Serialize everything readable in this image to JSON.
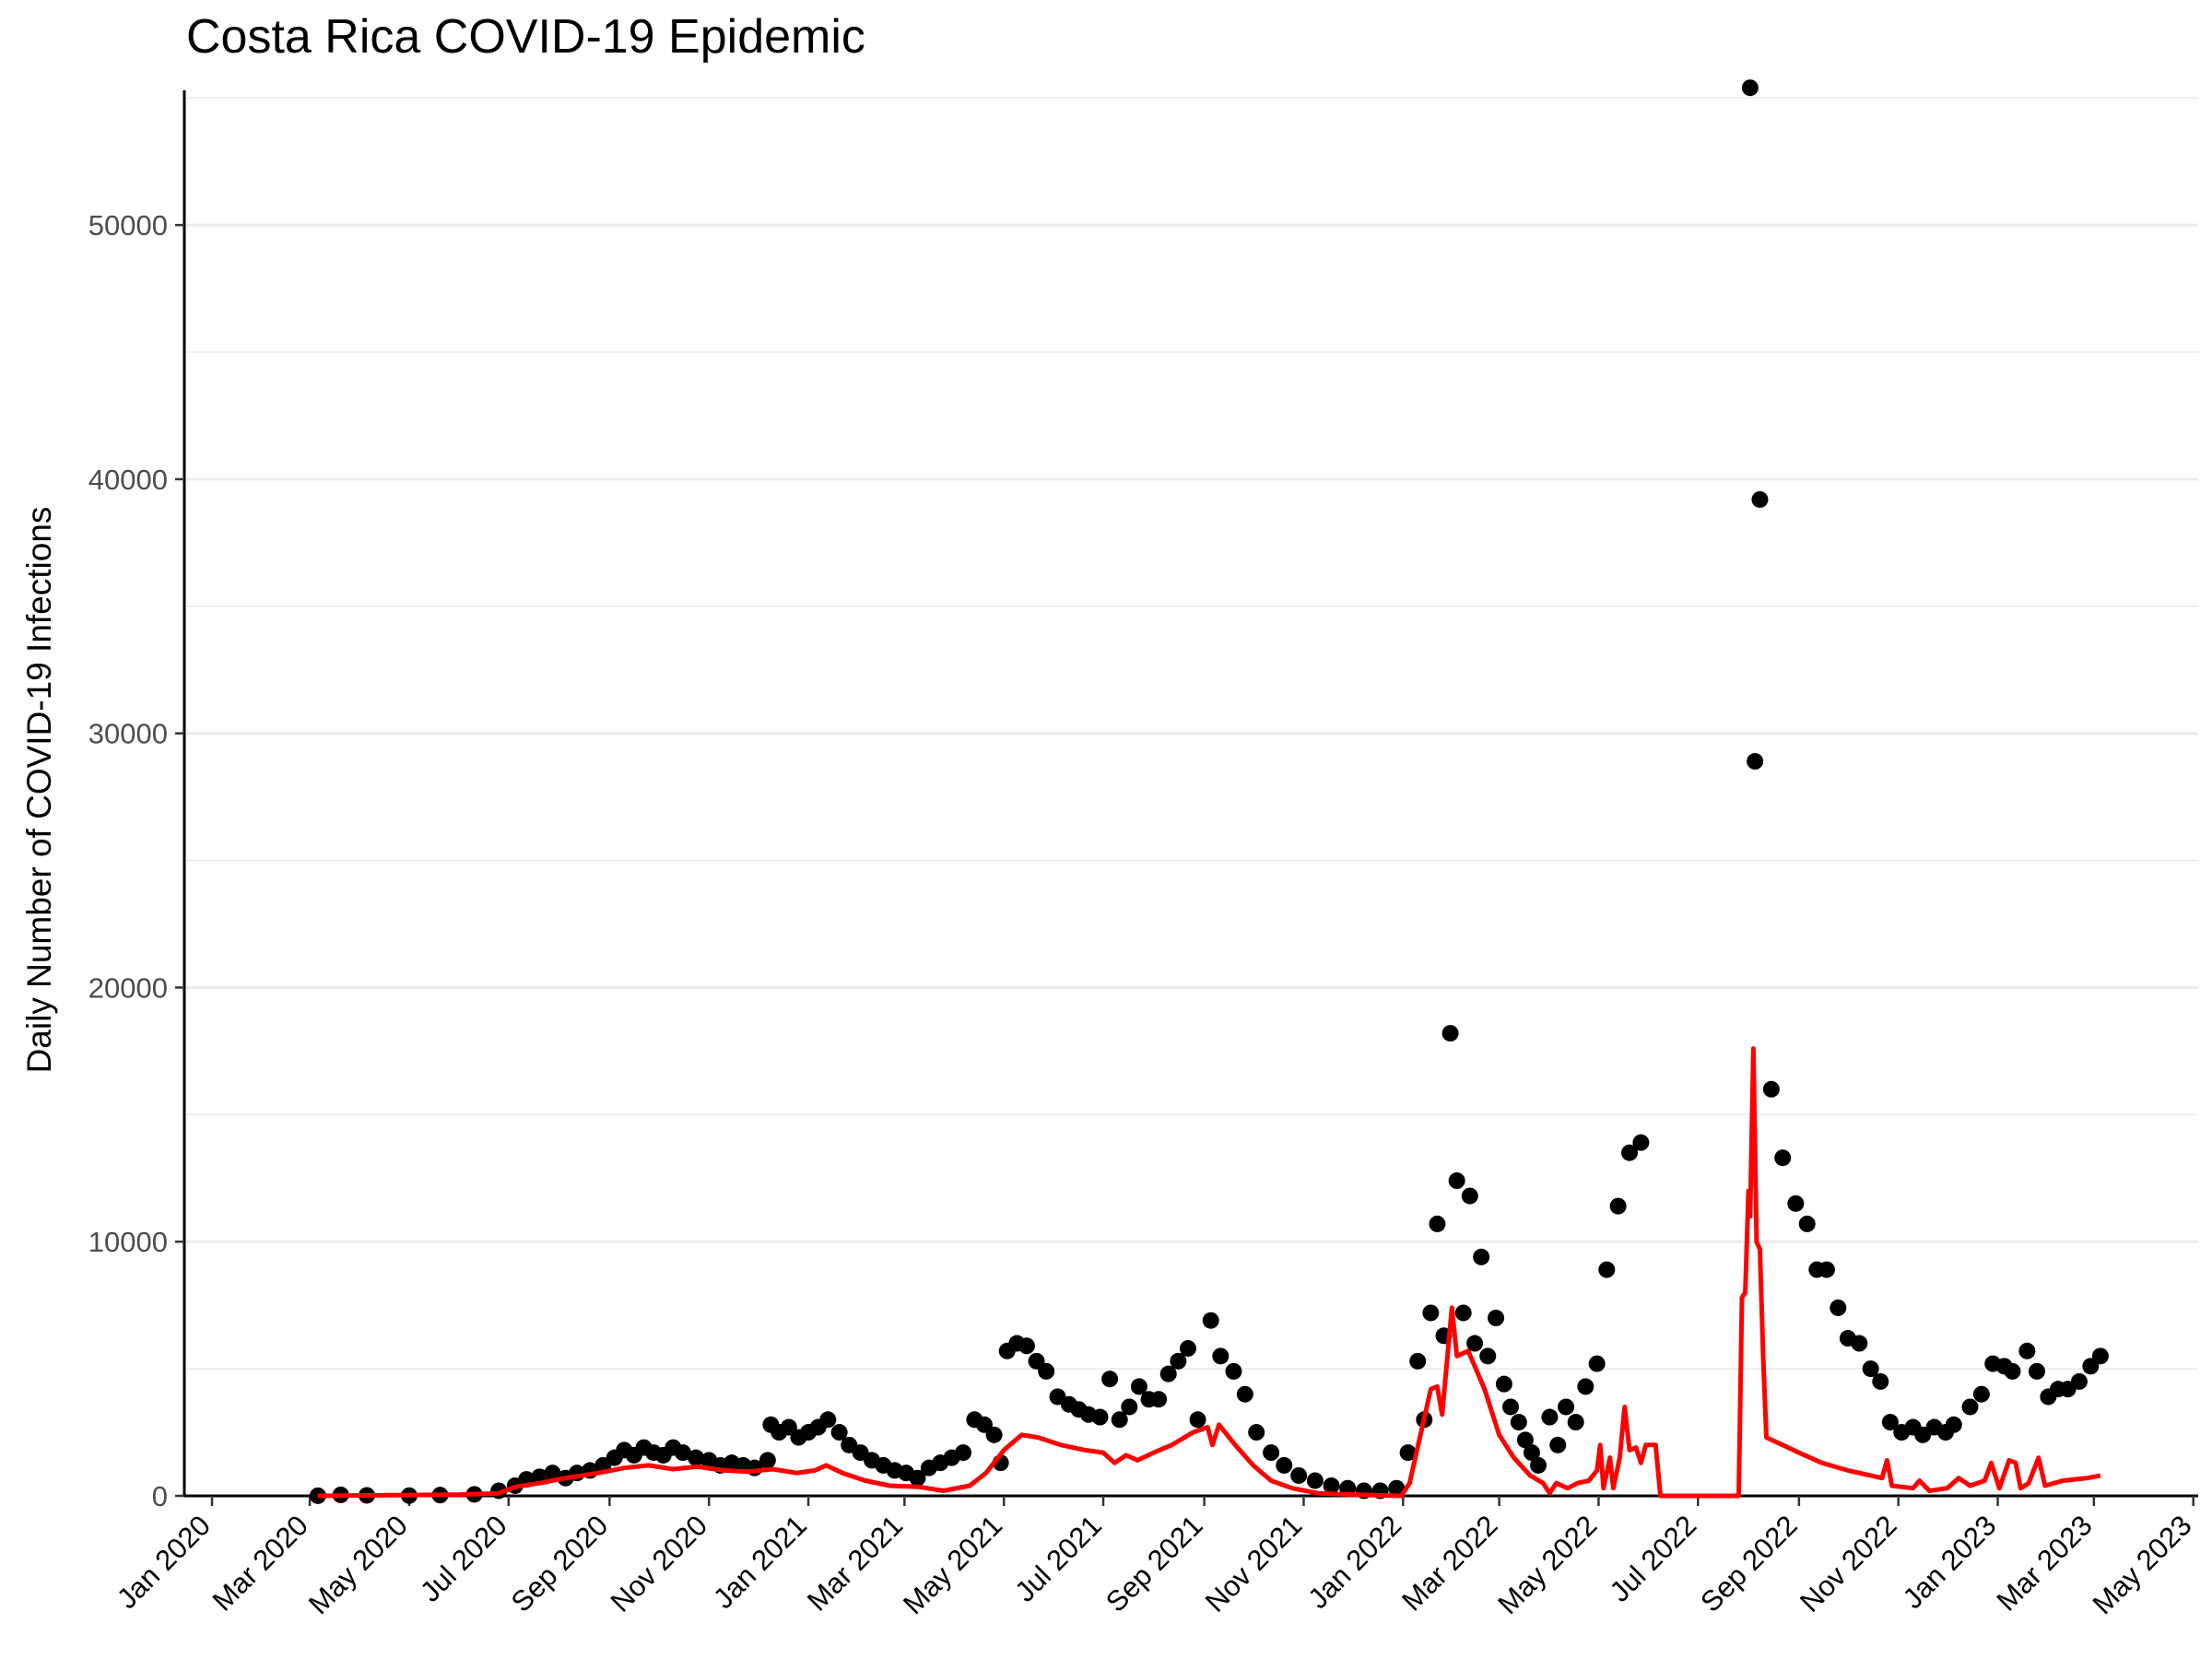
{
  "chart_data": {
    "type": "scatter",
    "title": "Costa Rica COVID-19 Epidemic",
    "xlabel": "",
    "ylabel": "Daily Number of COVID-19 Infections",
    "x_axis_type": "date",
    "xlim": [
      "2019-12-15",
      "2023-05-04"
    ],
    "ylim": [
      0,
      55300
    ],
    "y_ticks": [
      0,
      10000,
      20000,
      30000,
      40000,
      50000
    ],
    "y_tick_labels": [
      "0",
      "10000",
      "20000",
      "30000",
      "40000",
      "50000"
    ],
    "x_ticks": [
      "2020-01-01",
      "2020-03-01",
      "2020-05-01",
      "2020-07-01",
      "2020-09-01",
      "2020-11-01",
      "2021-01-01",
      "2021-03-01",
      "2021-05-01",
      "2021-07-01",
      "2021-09-01",
      "2021-11-01",
      "2022-01-01",
      "2022-03-01",
      "2022-05-01",
      "2022-07-01",
      "2022-09-01",
      "2022-11-01",
      "2023-01-01",
      "2023-03-01",
      "2023-05-01"
    ],
    "x_tick_labels": [
      "Jan 2020",
      "Mar 2020",
      "May 2020",
      "Jul 2020",
      "Sep 2020",
      "Nov 2020",
      "Jan 2021",
      "Mar 2021",
      "May 2021",
      "Jul 2021",
      "Sep 2021",
      "Nov 2021",
      "Jan 2022",
      "Mar 2022",
      "May 2022",
      "Jul 2022",
      "Sep 2022",
      "Nov 2022",
      "Jan 2023",
      "Mar 2023",
      "May 2023"
    ],
    "grid": "horizontal major and minor",
    "legend": "none",
    "series": [
      {
        "mark": "point",
        "color": "#000000",
        "points": [
          [
            "2020-03-06",
            5
          ],
          [
            "2020-03-20",
            40
          ],
          [
            "2020-04-05",
            20
          ],
          [
            "2020-05-01",
            10
          ],
          [
            "2020-05-20",
            30
          ],
          [
            "2020-06-10",
            60
          ],
          [
            "2020-06-25",
            200
          ],
          [
            "2020-07-05",
            400
          ],
          [
            "2020-07-12",
            650
          ],
          [
            "2020-07-20",
            750
          ],
          [
            "2020-07-28",
            900
          ],
          [
            "2020-08-05",
            700
          ],
          [
            "2020-08-12",
            900
          ],
          [
            "2020-08-20",
            1000
          ],
          [
            "2020-08-28",
            1200
          ],
          [
            "2020-09-04",
            1500
          ],
          [
            "2020-09-10",
            1800
          ],
          [
            "2020-09-16",
            1600
          ],
          [
            "2020-09-22",
            1900
          ],
          [
            "2020-09-28",
            1700
          ],
          [
            "2020-10-04",
            1600
          ],
          [
            "2020-10-10",
            1900
          ],
          [
            "2020-10-16",
            1700
          ],
          [
            "2020-10-24",
            1500
          ],
          [
            "2020-11-01",
            1400
          ],
          [
            "2020-11-08",
            1200
          ],
          [
            "2020-11-15",
            1300
          ],
          [
            "2020-11-22",
            1200
          ],
          [
            "2020-11-29",
            1100
          ],
          [
            "2020-12-07",
            1400
          ],
          [
            "2020-12-09",
            2800
          ],
          [
            "2020-12-14",
            2500
          ],
          [
            "2020-12-20",
            2700
          ],
          [
            "2020-12-26",
            2300
          ],
          [
            "2021-01-01",
            2500
          ],
          [
            "2021-01-07",
            2700
          ],
          [
            "2021-01-13",
            3000
          ],
          [
            "2021-01-20",
            2500
          ],
          [
            "2021-01-26",
            2000
          ],
          [
            "2021-02-02",
            1700
          ],
          [
            "2021-02-09",
            1400
          ],
          [
            "2021-02-16",
            1200
          ],
          [
            "2021-02-23",
            1000
          ],
          [
            "2021-03-02",
            900
          ],
          [
            "2021-03-09",
            700
          ],
          [
            "2021-03-16",
            1100
          ],
          [
            "2021-03-23",
            1300
          ],
          [
            "2021-03-30",
            1500
          ],
          [
            "2021-04-06",
            1700
          ],
          [
            "2021-04-13",
            3000
          ],
          [
            "2021-04-19",
            2800
          ],
          [
            "2021-04-25",
            2400
          ],
          [
            "2021-04-29",
            1300
          ],
          [
            "2021-05-03",
            5700
          ],
          [
            "2021-05-09",
            6000
          ],
          [
            "2021-05-15",
            5900
          ],
          [
            "2021-05-21",
            5300
          ],
          [
            "2021-05-27",
            4900
          ],
          [
            "2021-06-03",
            3900
          ],
          [
            "2021-06-10",
            3600
          ],
          [
            "2021-06-16",
            3400
          ],
          [
            "2021-06-22",
            3200
          ],
          [
            "2021-06-29",
            3100
          ],
          [
            "2021-07-05",
            4600
          ],
          [
            "2021-07-11",
            3000
          ],
          [
            "2021-07-17",
            3500
          ],
          [
            "2021-07-23",
            4300
          ],
          [
            "2021-07-29",
            3800
          ],
          [
            "2021-08-04",
            3800
          ],
          [
            "2021-08-10",
            4800
          ],
          [
            "2021-08-16",
            5300
          ],
          [
            "2021-08-22",
            5800
          ],
          [
            "2021-08-28",
            3000
          ],
          [
            "2021-09-05",
            6900
          ],
          [
            "2021-09-11",
            5500
          ],
          [
            "2021-09-19",
            4900
          ],
          [
            "2021-09-26",
            4000
          ],
          [
            "2021-10-03",
            2500
          ],
          [
            "2021-10-12",
            1700
          ],
          [
            "2021-10-20",
            1200
          ],
          [
            "2021-10-29",
            800
          ],
          [
            "2021-11-08",
            600
          ],
          [
            "2021-11-18",
            400
          ],
          [
            "2021-11-28",
            300
          ],
          [
            "2021-12-08",
            200
          ],
          [
            "2021-12-18",
            200
          ],
          [
            "2021-12-28",
            300
          ],
          [
            "2022-01-04",
            1700
          ],
          [
            "2022-01-10",
            5300
          ],
          [
            "2022-01-14",
            3000
          ],
          [
            "2022-01-18",
            7200
          ],
          [
            "2022-01-22",
            10700
          ],
          [
            "2022-01-26",
            6300
          ],
          [
            "2022-01-30",
            18200
          ],
          [
            "2022-02-03",
            12400
          ],
          [
            "2022-02-07",
            7200
          ],
          [
            "2022-02-11",
            11800
          ],
          [
            "2022-02-14",
            6000
          ],
          [
            "2022-02-18",
            9400
          ],
          [
            "2022-02-22",
            5500
          ],
          [
            "2022-02-27",
            7000
          ],
          [
            "2022-03-04",
            4400
          ],
          [
            "2022-03-08",
            3500
          ],
          [
            "2022-03-13",
            2900
          ],
          [
            "2022-03-17",
            2200
          ],
          [
            "2022-03-21",
            1700
          ],
          [
            "2022-03-25",
            1200
          ],
          [
            "2022-04-01",
            3100
          ],
          [
            "2022-04-06",
            2000
          ],
          [
            "2022-04-11",
            3500
          ],
          [
            "2022-04-17",
            2900
          ],
          [
            "2022-04-23",
            4300
          ],
          [
            "2022-04-30",
            5200
          ],
          [
            "2022-05-06",
            8900
          ],
          [
            "2022-05-13",
            11400
          ],
          [
            "2022-05-20",
            13500
          ],
          [
            "2022-05-27",
            13900
          ],
          [
            "2022-08-02",
            55400
          ],
          [
            "2022-08-05",
            28900
          ],
          [
            "2022-08-08",
            39200
          ],
          [
            "2022-08-15",
            16000
          ],
          [
            "2022-08-22",
            13300
          ],
          [
            "2022-08-30",
            11500
          ],
          [
            "2022-09-06",
            10700
          ],
          [
            "2022-09-12",
            8900
          ],
          [
            "2022-09-18",
            8900
          ],
          [
            "2022-09-25",
            7400
          ],
          [
            "2022-10-01",
            6200
          ],
          [
            "2022-10-08",
            6000
          ],
          [
            "2022-10-15",
            5000
          ],
          [
            "2022-10-21",
            4500
          ],
          [
            "2022-10-27",
            2900
          ],
          [
            "2022-11-03",
            2500
          ],
          [
            "2022-11-10",
            2700
          ],
          [
            "2022-11-16",
            2400
          ],
          [
            "2022-11-23",
            2700
          ],
          [
            "2022-11-30",
            2500
          ],
          [
            "2022-12-05",
            2800
          ],
          [
            "2022-12-15",
            3500
          ],
          [
            "2022-12-22",
            4000
          ],
          [
            "2022-12-29",
            5200
          ],
          [
            "2023-01-05",
            5100
          ],
          [
            "2023-01-10",
            4900
          ],
          [
            "2023-01-19",
            5700
          ],
          [
            "2023-01-25",
            4900
          ],
          [
            "2023-02-01",
            3900
          ],
          [
            "2023-02-07",
            4200
          ],
          [
            "2023-02-13",
            4200
          ],
          [
            "2023-02-20",
            4500
          ],
          [
            "2023-02-27",
            5100
          ],
          [
            "2023-03-05",
            5500
          ]
        ]
      },
      {
        "mark": "line",
        "color": "#ff0000",
        "points": [
          [
            "2020-03-06",
            0
          ],
          [
            "2020-06-01",
            50
          ],
          [
            "2020-06-25",
            100
          ],
          [
            "2020-07-05",
            350
          ],
          [
            "2020-07-20",
            500
          ],
          [
            "2020-08-05",
            700
          ],
          [
            "2020-08-25",
            900
          ],
          [
            "2020-09-10",
            1100
          ],
          [
            "2020-09-25",
            1200
          ],
          [
            "2020-10-10",
            1050
          ],
          [
            "2020-10-25",
            1150
          ],
          [
            "2020-11-10",
            1000
          ],
          [
            "2020-11-25",
            950
          ],
          [
            "2020-12-10",
            1050
          ],
          [
            "2020-12-25",
            900
          ],
          [
            "2021-01-05",
            1000
          ],
          [
            "2021-01-12",
            1200
          ],
          [
            "2021-01-22",
            900
          ],
          [
            "2021-02-05",
            600
          ],
          [
            "2021-02-20",
            400
          ],
          [
            "2021-03-10",
            350
          ],
          [
            "2021-03-25",
            200
          ],
          [
            "2021-04-10",
            400
          ],
          [
            "2021-04-20",
            900
          ],
          [
            "2021-05-01",
            1800
          ],
          [
            "2021-05-12",
            2400
          ],
          [
            "2021-05-22",
            2300
          ],
          [
            "2021-06-05",
            2000
          ],
          [
            "2021-06-20",
            1800
          ],
          [
            "2021-07-01",
            1700
          ],
          [
            "2021-07-08",
            1300
          ],
          [
            "2021-07-15",
            1600
          ],
          [
            "2021-07-22",
            1400
          ],
          [
            "2021-08-01",
            1700
          ],
          [
            "2021-08-12",
            2000
          ],
          [
            "2021-08-25",
            2500
          ],
          [
            "2021-09-03",
            2700
          ],
          [
            "2021-09-06",
            2000
          ],
          [
            "2021-09-10",
            2800
          ],
          [
            "2021-09-20",
            2000
          ],
          [
            "2021-10-01",
            1200
          ],
          [
            "2021-10-12",
            600
          ],
          [
            "2021-10-25",
            300
          ],
          [
            "2021-11-10",
            100
          ],
          [
            "2021-12-01",
            50
          ],
          [
            "2021-12-31",
            0
          ],
          [
            "2022-01-05",
            500
          ],
          [
            "2022-01-12",
            2500
          ],
          [
            "2022-01-18",
            4200
          ],
          [
            "2022-01-22",
            4300
          ],
          [
            "2022-01-25",
            3200
          ],
          [
            "2022-01-31",
            7400
          ],
          [
            "2022-02-03",
            5500
          ],
          [
            "2022-02-10",
            5700
          ],
          [
            "2022-02-20",
            4200
          ],
          [
            "2022-03-01",
            2400
          ],
          [
            "2022-03-10",
            1500
          ],
          [
            "2022-03-20",
            800
          ],
          [
            "2022-03-28",
            500
          ],
          [
            "2022-04-01",
            100
          ],
          [
            "2022-04-05",
            500
          ],
          [
            "2022-04-12",
            300
          ],
          [
            "2022-04-18",
            500
          ],
          [
            "2022-04-25",
            600
          ],
          [
            "2022-04-30",
            1000
          ],
          [
            "2022-05-02",
            2000
          ],
          [
            "2022-05-04",
            300
          ],
          [
            "2022-05-08",
            1500
          ],
          [
            "2022-05-10",
            300
          ],
          [
            "2022-05-14",
            1500
          ],
          [
            "2022-05-17",
            3500
          ],
          [
            "2022-05-20",
            1800
          ],
          [
            "2022-05-24",
            1900
          ],
          [
            "2022-05-27",
            1300
          ],
          [
            "2022-05-30",
            2000
          ],
          [
            "2022-06-05",
            2000
          ],
          [
            "2022-06-08",
            0
          ],
          [
            "2022-07-26",
            0
          ],
          [
            "2022-07-28",
            7800
          ],
          [
            "2022-07-30",
            8000
          ],
          [
            "2022-08-01",
            12000
          ],
          [
            "2022-08-02",
            11000
          ],
          [
            "2022-08-04",
            17600
          ],
          [
            "2022-08-06",
            10000
          ],
          [
            "2022-08-08",
            9700
          ],
          [
            "2022-08-10",
            5500
          ],
          [
            "2022-08-12",
            2300
          ],
          [
            "2022-08-22",
            2000
          ],
          [
            "2022-09-01",
            1700
          ],
          [
            "2022-09-15",
            1300
          ],
          [
            "2022-10-01",
            1000
          ],
          [
            "2022-10-15",
            800
          ],
          [
            "2022-10-22",
            700
          ],
          [
            "2022-10-25",
            1400
          ],
          [
            "2022-10-28",
            400
          ],
          [
            "2022-11-10",
            300
          ],
          [
            "2022-11-14",
            600
          ],
          [
            "2022-11-20",
            200
          ],
          [
            "2022-12-01",
            300
          ],
          [
            "2022-12-08",
            700
          ],
          [
            "2022-12-15",
            400
          ],
          [
            "2022-12-24",
            600
          ],
          [
            "2022-12-28",
            1300
          ],
          [
            "2023-01-02",
            300
          ],
          [
            "2023-01-08",
            1400
          ],
          [
            "2023-01-12",
            1300
          ],
          [
            "2023-01-15",
            300
          ],
          [
            "2023-01-20",
            500
          ],
          [
            "2023-01-26",
            1500
          ],
          [
            "2023-01-30",
            400
          ],
          [
            "2023-02-10",
            600
          ],
          [
            "2023-02-25",
            700
          ],
          [
            "2023-03-05",
            800
          ]
        ]
      }
    ]
  }
}
